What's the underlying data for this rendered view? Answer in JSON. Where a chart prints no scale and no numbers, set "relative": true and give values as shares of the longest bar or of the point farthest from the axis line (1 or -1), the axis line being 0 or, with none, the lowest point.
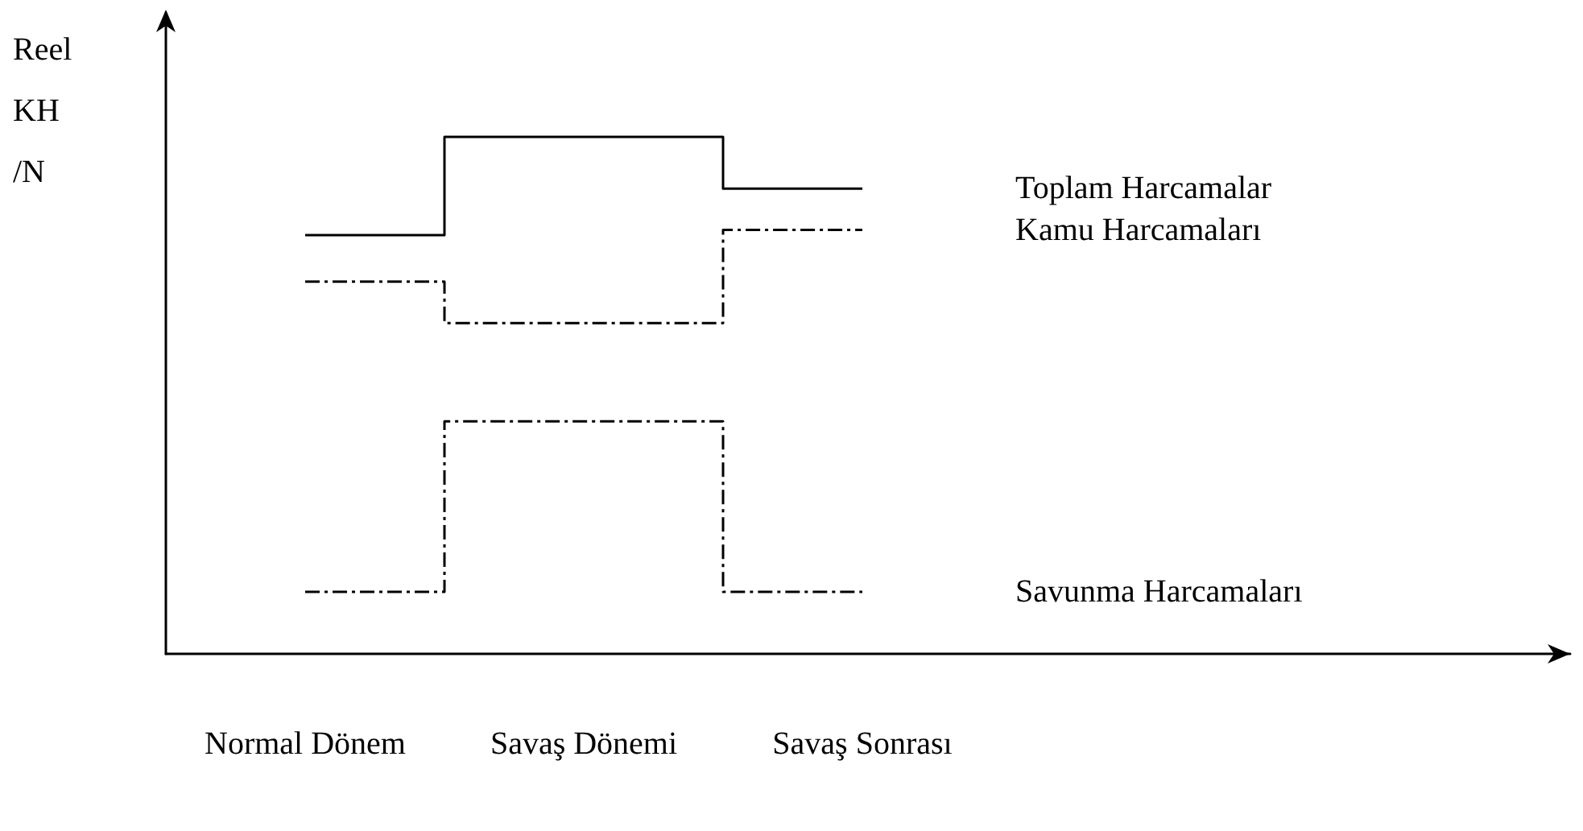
{
  "chart_data": {
    "type": "step",
    "relative": true,
    "ylabel": "Reel KH /N",
    "categories": [
      "Normal Dönem",
      "Savaş Dönemi",
      "Savaş Sonrası"
    ],
    "series": [
      {
        "name": "Toplam Harcamalar",
        "color": "#000000",
        "line_style": "solid",
        "values": [
          0.81,
          1,
          0.9
        ]
      },
      {
        "name": "Kamu Harcamaları",
        "color": "#000000",
        "line_style": "dashed",
        "values": [
          0.72,
          0.64,
          0.82
        ]
      },
      {
        "name": "Savunma Harcamaları",
        "color": "#000000",
        "line_style": "dashed",
        "values": [
          0.12,
          0.45,
          0.12
        ]
      }
    ],
    "legend": false,
    "grid": false,
    "marker": "none"
  }
}
